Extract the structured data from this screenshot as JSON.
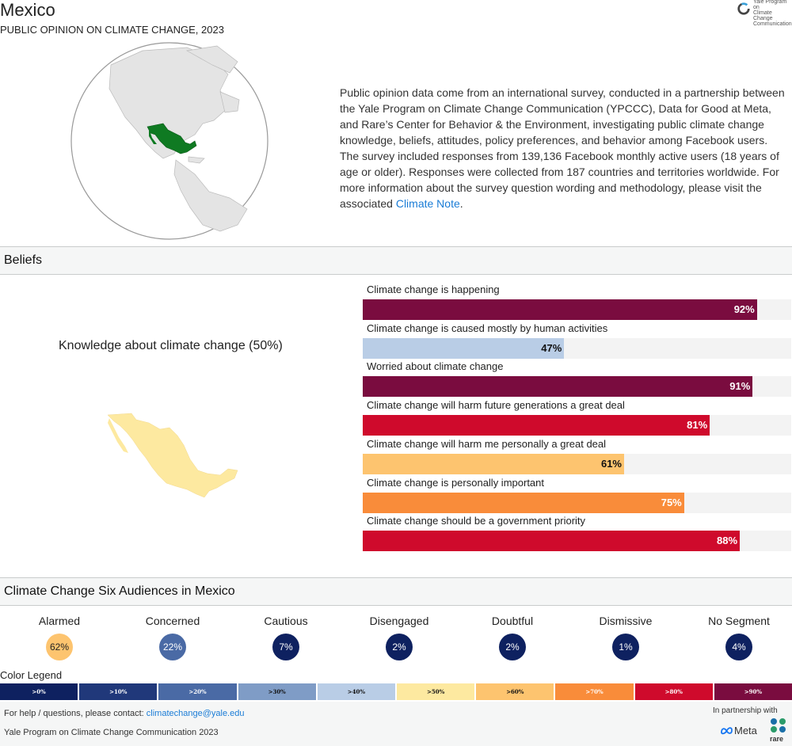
{
  "header": {
    "title": "Mexico",
    "subtitle": "PUBLIC OPINION ON CLIMATE CHANGE, 2023",
    "logo_lines": [
      "Yale Program on",
      "Climate Change",
      "Communication"
    ]
  },
  "intro": {
    "text": "Public opinion data come from an international survey, conducted in a partnership between the Yale Program on Climate Change Communication (YPCCC), Data for Good at Meta, and Rare’s Center for Behavior & the Environment, investigating public climate change knowledge, beliefs, attitudes, policy preferences, and behavior among Facebook users. The survey included responses from 139,136 Facebook monthly active users (18 years of age or older). Responses were collected from 187 countries and territories worldwide. For more information about the survey question wording and methodology, please visit the associated ",
    "link_text": "Climate Note",
    "suffix": "."
  },
  "beliefs": {
    "section_title": "Beliefs",
    "knowledge_title": "Knowledge about climate change (50%)",
    "knowledge_value": 50,
    "knowledge_color": "#fde9a0",
    "bars": [
      {
        "label": "Climate change is happening",
        "value": 92,
        "value_label": "92%",
        "color": "#7a0c3f",
        "text_color": "#ffffff"
      },
      {
        "label": "Climate change is caused mostly by human activities",
        "value": 47,
        "value_label": "47%",
        "color": "#b9cde6",
        "text_color": "#111111"
      },
      {
        "label": "Worried about climate change",
        "value": 91,
        "value_label": "91%",
        "color": "#7a0c3f",
        "text_color": "#ffffff"
      },
      {
        "label": "Climate change will harm future generations a great deal",
        "value": 81,
        "value_label": "81%",
        "color": "#cf0a2c",
        "text_color": "#ffffff"
      },
      {
        "label": "Climate change will harm me personally a great deal",
        "value": 61,
        "value_label": "61%",
        "color": "#fdc46f",
        "text_color": "#111111"
      },
      {
        "label": "Climate change is personally important",
        "value": 75,
        "value_label": "75%",
        "color": "#f98c3a",
        "text_color": "#ffffff"
      },
      {
        "label": "Climate change should be a government priority",
        "value": 88,
        "value_label": "88%",
        "color": "#cf0a2c",
        "text_color": "#ffffff"
      }
    ]
  },
  "audiences": {
    "section_title": "Climate Change Six Audiences in Mexico",
    "items": [
      {
        "name": "Alarmed",
        "value": "62%",
        "color": "#fdc46f",
        "text_color": "#222222"
      },
      {
        "name": "Concerned",
        "value": "22%",
        "color": "#4a6aa5",
        "text_color": "#ffffff"
      },
      {
        "name": "Cautious",
        "value": "7%",
        "color": "#0e2160",
        "text_color": "#ffffff"
      },
      {
        "name": "Disengaged",
        "value": "2%",
        "color": "#0e2160",
        "text_color": "#ffffff"
      },
      {
        "name": "Doubtful",
        "value": "2%",
        "color": "#0e2160",
        "text_color": "#ffffff"
      },
      {
        "name": "Dismissive",
        "value": "1%",
        "color": "#0e2160",
        "text_color": "#ffffff"
      },
      {
        "name": "No Segment",
        "value": "4%",
        "color": "#0e2160",
        "text_color": "#ffffff"
      }
    ]
  },
  "legend": {
    "title": "Color Legend",
    "items": [
      {
        "label": ">0%",
        "color": "#0e2160",
        "text_color": "#ffffff"
      },
      {
        "label": ">10%",
        "color": "#20387a",
        "text_color": "#ffffff"
      },
      {
        "label": ">20%",
        "color": "#4a6aa5",
        "text_color": "#ffffff"
      },
      {
        "label": ">30%",
        "color": "#7f9cc6",
        "text_color": "#111111"
      },
      {
        "label": ">40%",
        "color": "#b9cde6",
        "text_color": "#111111"
      },
      {
        "label": ">50%",
        "color": "#fde9a0",
        "text_color": "#111111"
      },
      {
        "label": ">60%",
        "color": "#fdc46f",
        "text_color": "#111111"
      },
      {
        "label": ">70%",
        "color": "#f98c3a",
        "text_color": "#ffffff"
      },
      {
        "label": ">80%",
        "color": "#cf0a2c",
        "text_color": "#ffffff"
      },
      {
        "label": ">90%",
        "color": "#7a0c3f",
        "text_color": "#ffffff"
      }
    ]
  },
  "footer": {
    "help_prefix": "For help / questions, please contact: ",
    "help_email": "climatechange@yale.edu",
    "credit": "Yale Program on Climate Change Communication 2023",
    "partner_label": "In partnership with",
    "meta_label": "Meta",
    "rare_label": "rare"
  }
}
